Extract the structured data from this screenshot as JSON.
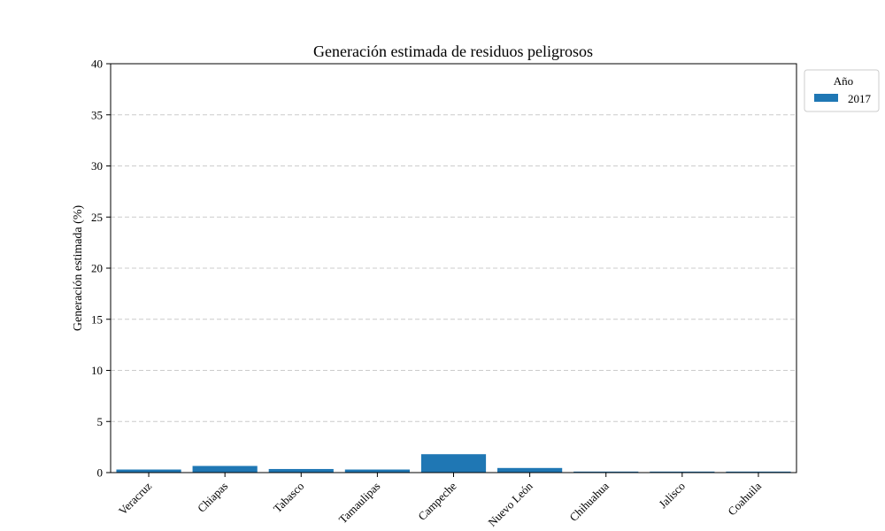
{
  "chart_data": {
    "type": "bar",
    "title": "Generación estimada de residuos peligrosos",
    "xlabel": "",
    "ylabel": "Generación estimada (%)",
    "ylim": [
      0,
      40
    ],
    "yticks": [
      0,
      5,
      10,
      15,
      20,
      25,
      30,
      35,
      40
    ],
    "categories": [
      "Veracruz",
      "Chiapas",
      "Tabasco",
      "Tamaulipas",
      "Campeche",
      "Nuevo León",
      "Chihuahua",
      "Jalisco",
      "Coahuila"
    ],
    "series": [
      {
        "name": "2017",
        "color": "#1f77b4",
        "values": [
          0.3,
          0.65,
          0.35,
          0.3,
          1.8,
          0.45,
          0.1,
          0.1,
          0.1
        ]
      }
    ],
    "legend_title": "Año",
    "legend_position": "outside-top-right",
    "grid": {
      "y": true,
      "style": "dashed"
    }
  }
}
